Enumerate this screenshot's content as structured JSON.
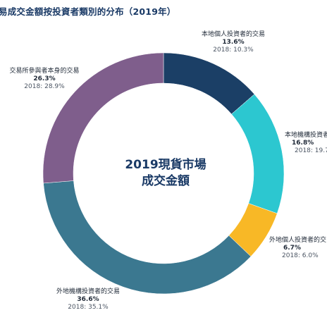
{
  "chart_data": {
    "type": "pie",
    "title": "易成交金額按投資者類別的分布（2019年）",
    "center_label": [
      "2019現貨市場",
      "成交金額"
    ],
    "slices": [
      {
        "name": "本地個人投資者的交易",
        "value": 13.6,
        "value_label": "13.6%",
        "prior_label": "2018: 10.3%",
        "color": "#1b3f66"
      },
      {
        "name": "本地機構投資者",
        "value": 16.8,
        "value_label": "16.8%",
        "prior_label": "2018: 19.7",
        "color": "#2cc7d0"
      },
      {
        "name": "外地個人投資者的交",
        "value": 6.7,
        "value_label": "6.7%",
        "prior_label": "2018: 6.0%",
        "color": "#f8b826"
      },
      {
        "name": "外地機構投資者的交易",
        "value": 36.6,
        "value_label": "36.6%",
        "prior_label": "2018: 35.1%",
        "color": "#3b7890"
      },
      {
        "name": "交易所參與者本身的交易",
        "value": 26.3,
        "value_label": "26.3%",
        "prior_label": "2018: 28.9%",
        "color": "#7f5e8c"
      }
    ]
  }
}
